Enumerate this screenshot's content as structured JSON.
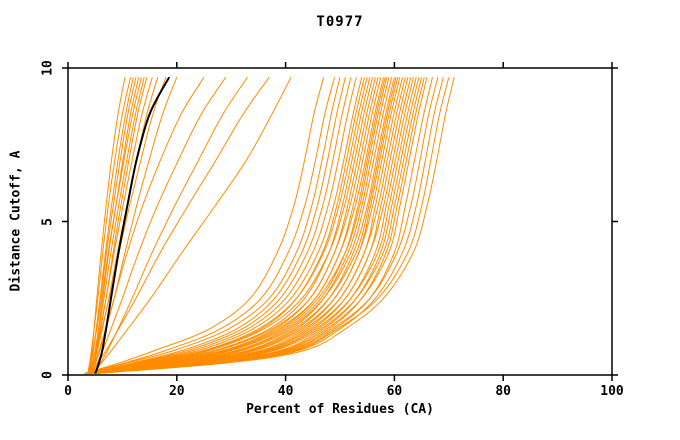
{
  "chart_data": {
    "type": "line",
    "title": "T0977",
    "xlabel": "Percent of Residues (CA)",
    "ylabel": "Distance Cutoff, A",
    "xlim": [
      0,
      100
    ],
    "ylim": [
      0,
      10
    ],
    "xticks": [
      0,
      20,
      40,
      60,
      80,
      100
    ],
    "yticks": [
      0,
      5,
      10
    ],
    "grid": false,
    "legend": "none",
    "line_color": "#ff8c00",
    "highlight_color": "#000000",
    "axis_color": "#000000",
    "y_levels": [
      0.05,
      0.4,
      0.8,
      1.5,
      2.5,
      4.0,
      5.5,
      7.0,
      8.5,
      9.7
    ],
    "series": [
      {
        "x": [
          3.8,
          4.1,
          4.4,
          4.8,
          5.3,
          6.1,
          7.0,
          8.0,
          9.2,
          10.5
        ]
      },
      {
        "x": [
          3.6,
          4.0,
          4.3,
          4.8,
          5.5,
          6.4,
          7.4,
          8.6,
          10.0,
          11.5
        ]
      },
      {
        "x": [
          4.0,
          4.3,
          4.7,
          5.2,
          5.9,
          6.9,
          8.0,
          9.2,
          10.6,
          12.0
        ]
      },
      {
        "x": [
          3.9,
          4.2,
          4.6,
          5.2,
          6.0,
          7.1,
          8.3,
          9.6,
          11.0,
          12.5
        ]
      },
      {
        "x": [
          4.2,
          4.6,
          5.0,
          5.6,
          6.4,
          7.5,
          8.8,
          10.1,
          11.5,
          13.0
        ]
      },
      {
        "x": [
          3.7,
          4.1,
          4.6,
          5.3,
          6.2,
          7.4,
          8.8,
          10.3,
          11.9,
          13.5
        ]
      },
      {
        "x": [
          4.1,
          4.5,
          5.0,
          5.7,
          6.6,
          7.9,
          9.3,
          10.8,
          12.4,
          14.0
        ]
      },
      {
        "x": [
          4.4,
          4.8,
          5.3,
          6.0,
          7.0,
          8.3,
          9.7,
          11.2,
          12.8,
          14.5
        ]
      },
      {
        "x": [
          4.0,
          4.5,
          5.1,
          5.9,
          7.0,
          8.5,
          10.1,
          11.8,
          13.6,
          15.5
        ]
      },
      {
        "x": [
          4.3,
          4.8,
          5.4,
          6.3,
          7.5,
          9.1,
          10.8,
          12.6,
          14.5,
          16.5
        ]
      },
      {
        "x": [
          3.9,
          4.5,
          5.2,
          6.2,
          7.6,
          9.4,
          11.3,
          13.4,
          15.6,
          18.0
        ]
      },
      {
        "x": [
          4.5,
          5.1,
          5.9,
          7.0,
          8.5,
          10.5,
          12.6,
          14.9,
          17.4,
          20.0
        ]
      },
      {
        "x": [
          4.2,
          4.9,
          5.7,
          6.9,
          8.5,
          10.9,
          13.7,
          17.0,
          20.8,
          25.0
        ]
      },
      {
        "x": [
          4.6,
          5.4,
          6.4,
          7.9,
          10.0,
          13.0,
          16.4,
          20.3,
          24.5,
          29.0
        ]
      },
      {
        "x": [
          5.0,
          6.0,
          7.3,
          9.2,
          11.8,
          15.5,
          19.6,
          24.0,
          28.5,
          33.0
        ]
      },
      {
        "x": [
          4.4,
          5.5,
          7.0,
          9.3,
          12.5,
          17.0,
          22.0,
          27.2,
          32.2,
          37.0
        ]
      },
      {
        "x": [
          4.8,
          6.2,
          8.0,
          11.0,
          15.2,
          21.0,
          27.0,
          32.8,
          37.5,
          41.0
        ]
      },
      {
        "x": [
          3.0,
          9.5,
          16.0,
          26.0,
          33.5,
          38.5,
          41.5,
          43.5,
          45.2,
          47.0
        ]
      },
      {
        "x": [
          3.2,
          10.5,
          18.0,
          28.0,
          35.5,
          40.5,
          43.5,
          45.5,
          47.2,
          49.0
        ]
      },
      {
        "x": [
          3.3,
          11.0,
          19.5,
          29.5,
          37.0,
          42.0,
          44.8,
          46.7,
          48.4,
          50.0
        ]
      },
      {
        "x": [
          3.4,
          12.0,
          21.0,
          31.0,
          38.0,
          43.0,
          45.8,
          47.7,
          49.4,
          51.0
        ]
      },
      {
        "x": [
          3.5,
          12.5,
          22.0,
          32.0,
          39.0,
          44.0,
          46.8,
          48.7,
          50.4,
          52.0
        ]
      },
      {
        "x": [
          3.5,
          13.0,
          23.0,
          33.0,
          40.0,
          45.0,
          47.8,
          49.7,
          51.4,
          53.0
        ]
      },
      {
        "x": [
          3.6,
          13.5,
          24.0,
          34.0,
          41.0,
          46.0,
          48.8,
          50.7,
          52.4,
          54.0
        ]
      },
      {
        "x": [
          3.6,
          14.5,
          25.5,
          35.5,
          42.0,
          46.8,
          49.4,
          51.2,
          52.9,
          54.5
        ]
      },
      {
        "x": [
          3.7,
          14.0,
          25.0,
          35.0,
          42.0,
          47.0,
          49.8,
          51.7,
          53.4,
          55.0
        ]
      },
      {
        "x": [
          3.7,
          15.5,
          27.0,
          37.0,
          43.5,
          48.0,
          50.4,
          52.2,
          53.9,
          55.5
        ]
      },
      {
        "x": [
          3.8,
          15.0,
          26.0,
          36.0,
          43.0,
          48.0,
          50.8,
          52.7,
          54.4,
          56.0
        ]
      },
      {
        "x": [
          3.8,
          16.5,
          28.5,
          38.0,
          44.5,
          49.0,
          51.4,
          53.2,
          54.9,
          56.5
        ]
      },
      {
        "x": [
          3.9,
          16.0,
          27.5,
          37.5,
          44.5,
          49.0,
          51.8,
          53.7,
          55.4,
          57.0
        ]
      },
      {
        "x": [
          3.9,
          17.5,
          29.5,
          39.0,
          45.5,
          50.0,
          52.4,
          54.2,
          55.9,
          57.5
        ]
      },
      {
        "x": [
          4.0,
          17.0,
          29.0,
          38.5,
          45.5,
          50.0,
          52.8,
          54.7,
          56.4,
          58.0
        ]
      },
      {
        "x": [
          4.0,
          18.5,
          31.0,
          40.0,
          46.5,
          51.0,
          53.3,
          55.0,
          56.7,
          58.3
        ]
      },
      {
        "x": [
          4.0,
          18.0,
          30.0,
          39.5,
          46.0,
          51.0,
          53.6,
          55.3,
          57.0,
          58.6
        ]
      },
      {
        "x": [
          4.1,
          19.5,
          32.0,
          41.0,
          47.0,
          51.5,
          54.0,
          55.7,
          57.4,
          59.0
        ]
      },
      {
        "x": [
          4.1,
          19.0,
          31.5,
          40.5,
          47.0,
          52.0,
          54.4,
          56.2,
          57.9,
          59.5
        ]
      },
      {
        "x": [
          4.2,
          20.5,
          33.5,
          42.0,
          48.0,
          52.5,
          55.0,
          56.7,
          58.4,
          60.0
        ]
      },
      {
        "x": [
          4.2,
          20.0,
          33.0,
          41.5,
          48.0,
          53.0,
          55.3,
          57.0,
          58.7,
          60.3
        ]
      },
      {
        "x": [
          4.2,
          21.5,
          34.5,
          43.0,
          49.0,
          53.5,
          55.6,
          57.3,
          59.0,
          60.6
        ]
      },
      {
        "x": [
          4.3,
          21.0,
          34.0,
          42.5,
          49.0,
          53.5,
          56.0,
          57.7,
          59.4,
          61.0
        ]
      },
      {
        "x": [
          4.3,
          22.5,
          36.0,
          44.0,
          50.0,
          54.5,
          56.5,
          58.2,
          59.9,
          61.5
        ]
      },
      {
        "x": [
          4.4,
          22.0,
          35.5,
          43.5,
          50.0,
          54.5,
          57.0,
          58.7,
          60.4,
          62.0
        ]
      },
      {
        "x": [
          4.4,
          23.5,
          37.0,
          45.0,
          51.0,
          55.5,
          57.5,
          59.2,
          60.9,
          62.5
        ]
      },
      {
        "x": [
          4.5,
          23.0,
          36.5,
          44.5,
          51.0,
          55.5,
          58.0,
          59.7,
          61.4,
          63.0
        ]
      },
      {
        "x": [
          4.5,
          24.5,
          38.0,
          46.0,
          52.0,
          56.5,
          58.5,
          60.2,
          61.9,
          63.5
        ]
      },
      {
        "x": [
          4.6,
          24.0,
          37.5,
          45.5,
          52.0,
          57.0,
          59.0,
          60.7,
          62.4,
          64.0
        ]
      },
      {
        "x": [
          4.6,
          25.5,
          39.5,
          47.0,
          53.0,
          57.5,
          59.5,
          61.2,
          62.9,
          64.5
        ]
      },
      {
        "x": [
          4.7,
          25.0,
          39.0,
          46.5,
          53.0,
          58.0,
          60.0,
          61.7,
          63.4,
          65.0
        ]
      },
      {
        "x": [
          4.7,
          26.5,
          40.5,
          48.0,
          54.0,
          58.5,
          60.5,
          62.2,
          63.9,
          65.5
        ]
      },
      {
        "x": [
          4.8,
          26.0,
          40.0,
          47.5,
          54.0,
          59.0,
          61.0,
          62.7,
          64.4,
          66.0
        ]
      },
      {
        "x": [
          4.8,
          27.5,
          41.5,
          49.0,
          55.5,
          60.0,
          62.0,
          63.7,
          65.4,
          67.0
        ]
      },
      {
        "x": [
          4.9,
          27.0,
          41.0,
          48.5,
          55.5,
          60.5,
          63.0,
          64.7,
          66.3,
          68.0
        ]
      },
      {
        "x": [
          4.9,
          28.5,
          42.5,
          50.0,
          56.5,
          61.5,
          64.0,
          65.7,
          67.3,
          69.0
        ]
      },
      {
        "x": [
          5.0,
          28.0,
          42.0,
          49.5,
          57.0,
          62.5,
          65.0,
          66.7,
          68.3,
          70.0
        ]
      },
      {
        "x": [
          5.0,
          29.5,
          43.5,
          51.0,
          58.0,
          63.5,
          66.0,
          67.8,
          69.4,
          71.0
        ]
      }
    ],
    "highlight": {
      "x": [
        5.0,
        5.7,
        6.3,
        7.0,
        7.9,
        9.3,
        10.9,
        12.6,
        15.0,
        18.6
      ]
    }
  }
}
